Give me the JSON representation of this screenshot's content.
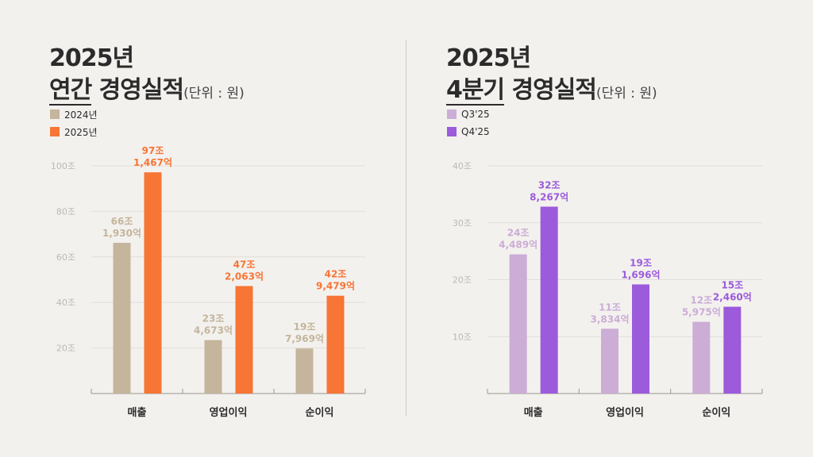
{
  "chart_data": [
    {
      "type": "bar",
      "title_line1": "2025년",
      "title_highlight": "연간",
      "title_rest": "경영실적",
      "unit": "(단위 : 원)",
      "categories": [
        "매출",
        "영업이익",
        "순이익"
      ],
      "ylim": [
        0,
        100
      ],
      "yticks": [
        20,
        40,
        60,
        80,
        100
      ],
      "ytick_labels": [
        "20조",
        "40조",
        "60조",
        "80조",
        "100조"
      ],
      "grid": true,
      "legend_placement": "top-left",
      "series": [
        {
          "name": "2024년",
          "color": "#c4b59c",
          "values": [
            66.193,
            23.4673,
            19.7969
          ],
          "labels": [
            [
              "66조",
              "1,930억"
            ],
            [
              "23조",
              "4,673억"
            ],
            [
              "19조",
              "7,969억"
            ]
          ]
        },
        {
          "name": "2025년",
          "color": "#f77535",
          "values": [
            97.1467,
            47.2063,
            42.9479
          ],
          "labels": [
            [
              "97조",
              "1,467억"
            ],
            [
              "47조",
              "2,063억"
            ],
            [
              "42조",
              "9,479억"
            ]
          ]
        }
      ]
    },
    {
      "type": "bar",
      "title_line1": "2025년",
      "title_highlight": "4분기",
      "title_rest": "경영실적",
      "unit": "(단위 : 원)",
      "categories": [
        "매출",
        "영업이익",
        "순이익"
      ],
      "ylim": [
        0,
        40
      ],
      "yticks": [
        10,
        20,
        30,
        40
      ],
      "ytick_labels": [
        "10조",
        "20조",
        "30조",
        "40조"
      ],
      "grid": true,
      "legend_placement": "top-left",
      "series": [
        {
          "name": "Q3'25",
          "color": "#cbadd6",
          "values": [
            24.4489,
            11.3834,
            12.5975
          ],
          "labels": [
            [
              "24조",
              "4,489억"
            ],
            [
              "11조",
              "3,834억"
            ],
            [
              "12조",
              "5,975억"
            ]
          ]
        },
        {
          "name": "Q4'25",
          "color": "#9b5bdb",
          "values": [
            32.8267,
            19.1696,
            15.246
          ],
          "labels": [
            [
              "32조",
              "8,267억"
            ],
            [
              "19조",
              "1,696억"
            ],
            [
              "15조",
              "2,460억"
            ]
          ]
        }
      ]
    }
  ]
}
